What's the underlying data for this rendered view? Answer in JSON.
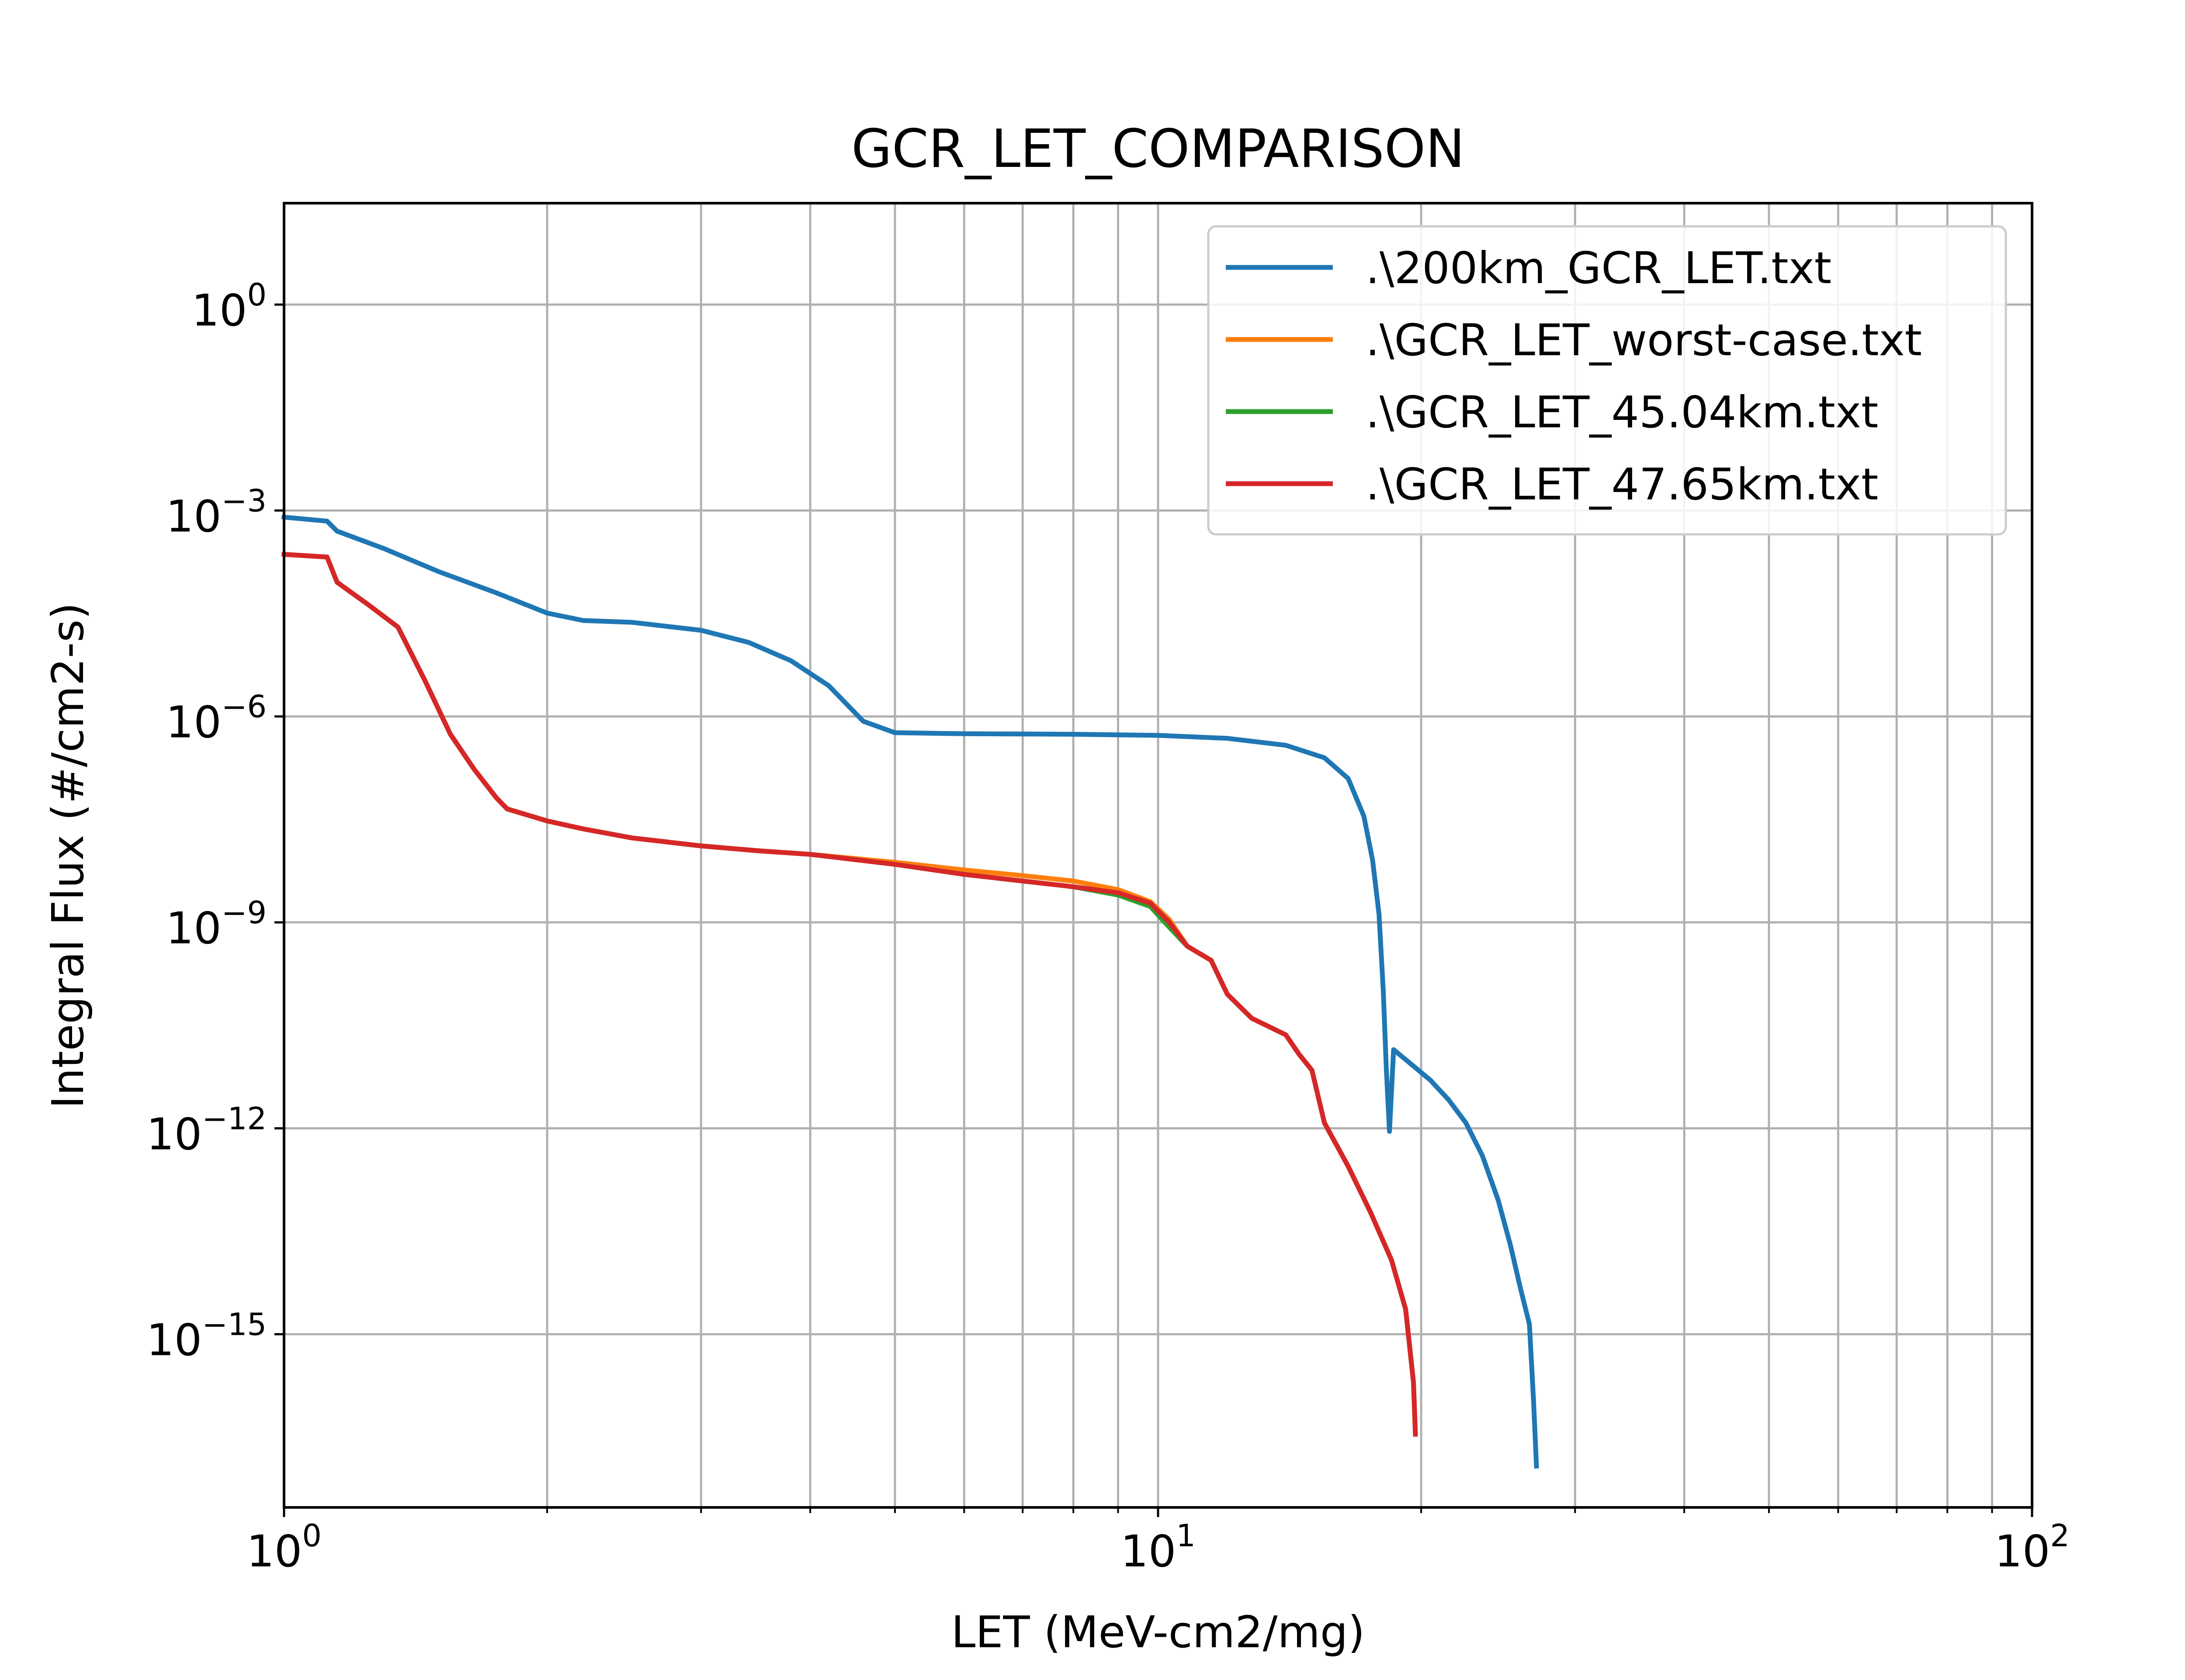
{
  "chart_data": {
    "type": "line",
    "title": "GCR_LET_COMPARISON",
    "xlabel": "LET (MeV-cm2/mg)",
    "ylabel": "Integral Flux (#/cm2-s)",
    "x_scale": "log",
    "y_scale": "log",
    "xlim": [
      1,
      100
    ],
    "ylim": [
      3e-18,
      30
    ],
    "grid": "major and minor (x), major (y)",
    "legend_position": "top-right",
    "x_ticks": [
      {
        "value": 1,
        "base": "10",
        "exp": "0"
      },
      {
        "value": 10,
        "base": "10",
        "exp": "1"
      },
      {
        "value": 100,
        "base": "10",
        "exp": "2"
      }
    ],
    "y_ticks": [
      {
        "value": 1,
        "base": "10",
        "exp": "0"
      },
      {
        "value": 0.001,
        "base": "10",
        "exp": "−3"
      },
      {
        "value": 1e-06,
        "base": "10",
        "exp": "−6"
      },
      {
        "value": 1e-09,
        "base": "10",
        "exp": "−9"
      },
      {
        "value": 1e-12,
        "base": "10",
        "exp": "−12"
      },
      {
        "value": 1e-15,
        "base": "10",
        "exp": "−15"
      }
    ],
    "series": [
      {
        "name": ".\\200km_GCR_LET.txt",
        "color": "#1f77b4",
        "points": [
          [
            1.0,
            0.0008
          ],
          [
            1.12,
            0.0007
          ],
          [
            1.15,
            0.0005
          ],
          [
            1.3,
            0.00028
          ],
          [
            1.5,
            0.00013
          ],
          [
            1.75,
            6.3e-05
          ],
          [
            2.0,
            3.2e-05
          ],
          [
            2.2,
            2.5e-05
          ],
          [
            2.5,
            2.35e-05
          ],
          [
            3.0,
            1.8e-05
          ],
          [
            3.4,
            1.2e-05
          ],
          [
            3.8,
            6.5e-06
          ],
          [
            4.2,
            2.8e-06
          ],
          [
            4.6,
            8.5e-07
          ],
          [
            5.0,
            5.8e-07
          ],
          [
            6.0,
            5.6e-07
          ],
          [
            8.0,
            5.5e-07
          ],
          [
            10.0,
            5.3e-07
          ],
          [
            12.0,
            4.8e-07
          ],
          [
            14.0,
            3.8e-07
          ],
          [
            15.5,
            2.5e-07
          ],
          [
            16.5,
            1.25e-07
          ],
          [
            17.2,
            3.5e-08
          ],
          [
            17.6,
            8e-09
          ],
          [
            17.9,
            1.3e-09
          ],
          [
            18.1,
            1e-10
          ],
          [
            18.25,
            7e-12
          ],
          [
            18.4,
            9e-13
          ],
          [
            18.6,
            1.4e-11
          ],
          [
            19.5,
            8.5e-12
          ],
          [
            20.5,
            5e-12
          ],
          [
            21.5,
            2.6e-12
          ],
          [
            22.5,
            1.2e-12
          ],
          [
            23.5,
            4e-13
          ],
          [
            24.5,
            9e-14
          ],
          [
            25.3,
            2e-14
          ],
          [
            26.0,
            4.5e-15
          ],
          [
            26.6,
            1.4e-15
          ],
          [
            26.9,
            1e-16
          ],
          [
            27.1,
            1.2e-17
          ]
        ]
      },
      {
        "name": ".\\GCR_LET_worst-case.txt",
        "color": "#ff7f0e",
        "points": [
          [
            1.0,
            0.00023
          ],
          [
            1.12,
            0.00021
          ],
          [
            1.15,
            9e-05
          ],
          [
            1.25,
            4.2e-05
          ],
          [
            1.35,
            2e-05
          ],
          [
            1.45,
            3.3e-06
          ],
          [
            1.55,
            5.5e-07
          ],
          [
            1.65,
            1.7e-07
          ],
          [
            1.75,
            6.5e-08
          ],
          [
            1.8,
            4.5e-08
          ],
          [
            2.0,
            3e-08
          ],
          [
            2.2,
            2.3e-08
          ],
          [
            2.5,
            1.7e-08
          ],
          [
            3.0,
            1.3e-08
          ],
          [
            3.5,
            1.1e-08
          ],
          [
            4.0,
            9.8e-09
          ],
          [
            5.0,
            7.5e-09
          ],
          [
            6.0,
            5.8e-09
          ],
          [
            7.0,
            4.8e-09
          ],
          [
            8.0,
            4e-09
          ],
          [
            9.0,
            3e-09
          ],
          [
            9.8,
            2e-09
          ],
          [
            10.3,
            1.1e-09
          ],
          [
            10.8,
            4.5e-10
          ],
          [
            11.5,
            2.8e-10
          ],
          [
            12.0,
            9e-11
          ],
          [
            12.8,
            4e-11
          ],
          [
            14.0,
            2.3e-11
          ],
          [
            14.5,
            1.2e-11
          ],
          [
            15.0,
            7e-12
          ],
          [
            15.5,
            1.2e-12
          ],
          [
            16.5,
            2.8e-13
          ],
          [
            17.5,
            6e-14
          ],
          [
            18.5,
            1.2e-14
          ],
          [
            19.2,
            2.3e-15
          ],
          [
            19.6,
            2e-16
          ],
          [
            19.7,
            3.5e-17
          ]
        ]
      },
      {
        "name": ".\\GCR_LET_45.04km.txt",
        "color": "#2ca02c",
        "points": [
          [
            1.0,
            0.00023
          ],
          [
            1.12,
            0.00021
          ],
          [
            1.15,
            9e-05
          ],
          [
            1.25,
            4.2e-05
          ],
          [
            1.35,
            2e-05
          ],
          [
            1.45,
            3.3e-06
          ],
          [
            1.55,
            5.5e-07
          ],
          [
            1.65,
            1.7e-07
          ],
          [
            1.75,
            6.5e-08
          ],
          [
            1.8,
            4.5e-08
          ],
          [
            2.0,
            3e-08
          ],
          [
            2.2,
            2.3e-08
          ],
          [
            2.5,
            1.7e-08
          ],
          [
            3.0,
            1.3e-08
          ],
          [
            3.5,
            1.1e-08
          ],
          [
            4.0,
            9.8e-09
          ],
          [
            5.0,
            7e-09
          ],
          [
            6.0,
            5e-09
          ],
          [
            7.0,
            4e-09
          ],
          [
            8.0,
            3.3e-09
          ],
          [
            9.0,
            2.5e-09
          ],
          [
            9.8,
            1.7e-09
          ],
          [
            10.3,
            8.5e-10
          ],
          [
            10.8,
            4.5e-10
          ],
          [
            11.5,
            2.8e-10
          ],
          [
            12.0,
            9e-11
          ],
          [
            12.8,
            4e-11
          ],
          [
            14.0,
            2.3e-11
          ],
          [
            14.5,
            1.2e-11
          ],
          [
            15.0,
            7e-12
          ],
          [
            15.5,
            1.2e-12
          ],
          [
            16.5,
            2.8e-13
          ],
          [
            17.5,
            6e-14
          ],
          [
            18.5,
            1.2e-14
          ],
          [
            19.2,
            2.3e-15
          ],
          [
            19.6,
            2e-16
          ],
          [
            19.7,
            3.5e-17
          ]
        ]
      },
      {
        "name": ".\\GCR_LET_47.65km.txt",
        "color": "#d62728",
        "points": [
          [
            1.0,
            0.00023
          ],
          [
            1.12,
            0.00021
          ],
          [
            1.15,
            9e-05
          ],
          [
            1.25,
            4.2e-05
          ],
          [
            1.35,
            2e-05
          ],
          [
            1.45,
            3.3e-06
          ],
          [
            1.55,
            5.5e-07
          ],
          [
            1.65,
            1.7e-07
          ],
          [
            1.75,
            6.5e-08
          ],
          [
            1.8,
            4.5e-08
          ],
          [
            2.0,
            3e-08
          ],
          [
            2.2,
            2.3e-08
          ],
          [
            2.5,
            1.7e-08
          ],
          [
            3.0,
            1.3e-08
          ],
          [
            3.5,
            1.1e-08
          ],
          [
            4.0,
            9.8e-09
          ],
          [
            5.0,
            7e-09
          ],
          [
            6.0,
            5e-09
          ],
          [
            7.0,
            4e-09
          ],
          [
            8.0,
            3.3e-09
          ],
          [
            9.0,
            2.7e-09
          ],
          [
            9.8,
            1.9e-09
          ],
          [
            10.3,
            1e-09
          ],
          [
            10.8,
            4.5e-10
          ],
          [
            11.5,
            2.8e-10
          ],
          [
            12.0,
            9e-11
          ],
          [
            12.8,
            4e-11
          ],
          [
            14.0,
            2.3e-11
          ],
          [
            14.5,
            1.2e-11
          ],
          [
            15.0,
            7e-12
          ],
          [
            15.5,
            1.2e-12
          ],
          [
            16.5,
            2.8e-13
          ],
          [
            17.5,
            6e-14
          ],
          [
            18.5,
            1.2e-14
          ],
          [
            19.2,
            2.3e-15
          ],
          [
            19.6,
            2e-16
          ],
          [
            19.7,
            3.5e-17
          ]
        ]
      }
    ]
  }
}
